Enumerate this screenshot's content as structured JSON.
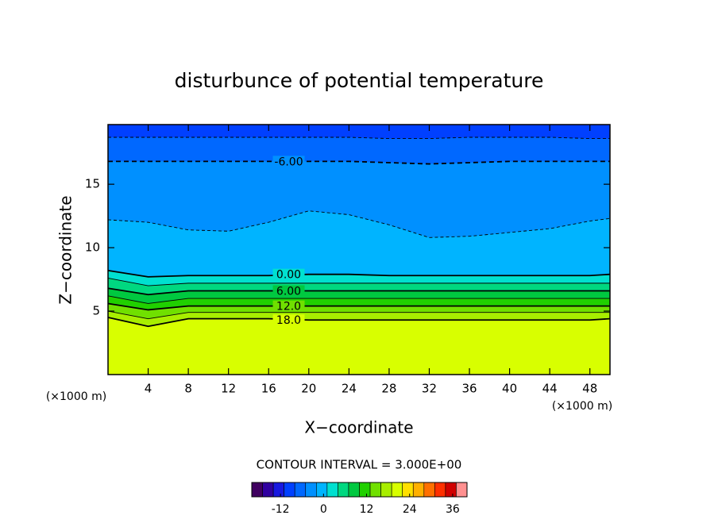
{
  "chart_data": {
    "type": "contour",
    "title": "disturbunce of potential temperature",
    "xlabel": "X−coordinate",
    "ylabel": "Z−coordinate",
    "x_unit_label": "(×1000 m)",
    "x_unit_label_right": "(×1000 m)",
    "note": "CONTOUR INTERVAL = 3.000E+00",
    "xlim": [
      0,
      50
    ],
    "ylim": [
      0,
      19.7
    ],
    "xticks": [
      4,
      8,
      12,
      16,
      20,
      24,
      28,
      32,
      36,
      40,
      44,
      48
    ],
    "yticks": [
      5,
      10,
      15
    ],
    "x": [
      0,
      4,
      8,
      12,
      16,
      20,
      24,
      28,
      32,
      36,
      40,
      44,
      48,
      50
    ],
    "contours": [
      {
        "level": -9,
        "z": [
          18.7,
          18.7,
          18.7,
          18.7,
          18.7,
          18.7,
          18.7,
          18.6,
          18.6,
          18.7,
          18.7,
          18.7,
          18.6,
          18.6
        ]
      },
      {
        "level": -6,
        "label": "-6.00",
        "z": [
          16.8,
          16.8,
          16.8,
          16.8,
          16.8,
          16.8,
          16.8,
          16.7,
          16.6,
          16.7,
          16.8,
          16.8,
          16.8,
          16.8
        ]
      },
      {
        "level": -3,
        "z": [
          12.2,
          12.0,
          11.4,
          11.3,
          12.0,
          12.9,
          12.6,
          11.8,
          10.8,
          10.9,
          11.2,
          11.5,
          12.1,
          12.3
        ]
      },
      {
        "level": 0,
        "label": "0.00",
        "z": [
          8.2,
          7.7,
          7.8,
          7.8,
          7.8,
          7.9,
          7.9,
          7.8,
          7.8,
          7.8,
          7.8,
          7.8,
          7.8,
          7.9
        ]
      },
      {
        "level": 3,
        "z": [
          7.6,
          7.0,
          7.2,
          7.2,
          7.2,
          7.2,
          7.2,
          7.2,
          7.2,
          7.2,
          7.2,
          7.2,
          7.2,
          7.2
        ]
      },
      {
        "level": 6,
        "label": "6.00",
        "z": [
          6.8,
          6.3,
          6.6,
          6.6,
          6.6,
          6.6,
          6.6,
          6.6,
          6.6,
          6.6,
          6.6,
          6.6,
          6.6,
          6.6
        ]
      },
      {
        "level": 9,
        "z": [
          6.2,
          5.6,
          6.0,
          6.0,
          6.0,
          6.0,
          6.0,
          6.0,
          6.0,
          6.0,
          6.0,
          6.0,
          6.0,
          6.0
        ]
      },
      {
        "level": 12,
        "label": "12.0",
        "z": [
          5.6,
          5.1,
          5.4,
          5.4,
          5.4,
          5.4,
          5.4,
          5.4,
          5.4,
          5.4,
          5.4,
          5.4,
          5.4,
          5.4
        ]
      },
      {
        "level": 15,
        "z": [
          5.0,
          4.4,
          4.9,
          4.9,
          4.9,
          4.9,
          4.9,
          4.9,
          4.9,
          4.9,
          4.9,
          4.9,
          4.9,
          4.9
        ]
      },
      {
        "level": 18,
        "label": "18.0",
        "z": [
          4.5,
          3.8,
          4.4,
          4.4,
          4.4,
          4.3,
          4.3,
          4.3,
          4.3,
          4.3,
          4.3,
          4.3,
          4.3,
          4.4
        ]
      }
    ],
    "clim": [
      -20,
      40
    ],
    "cticks": [
      -12,
      0,
      12,
      24,
      36
    ],
    "colormap": [
      "#400060",
      "#3000a0",
      "#1818e0",
      "#0040ff",
      "#0068ff",
      "#0090ff",
      "#00b4ff",
      "#00e0d0",
      "#00d880",
      "#00c840",
      "#20d000",
      "#70e000",
      "#a8ee00",
      "#d8ff00",
      "#ffe000",
      "#ffb000",
      "#ff7000",
      "#ff3000",
      "#d00000",
      "#ff9090"
    ]
  }
}
